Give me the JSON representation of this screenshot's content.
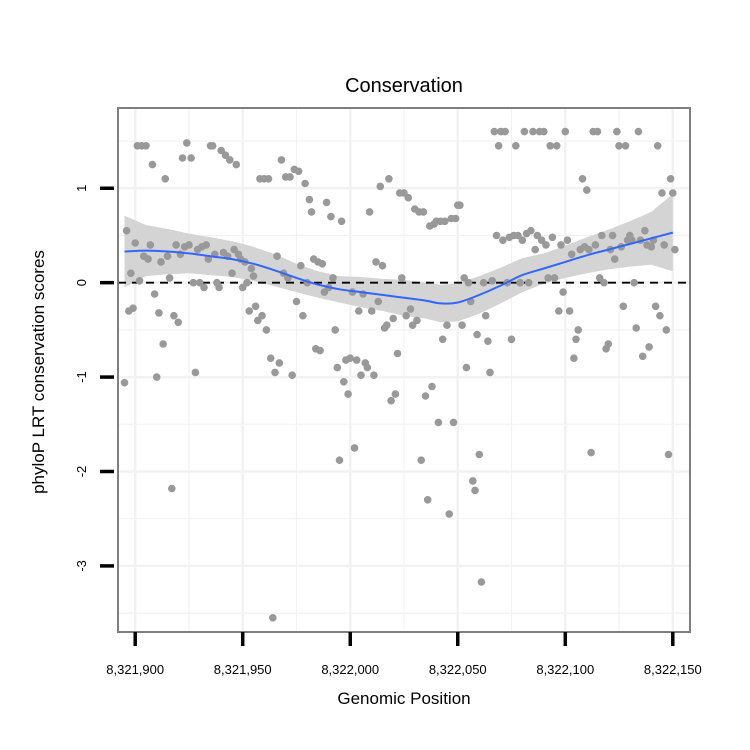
{
  "chart_data": {
    "type": "scatter",
    "title": "Conservation",
    "xlabel": "Genomic Position",
    "ylabel": "phyloP LRT conservation scores",
    "xlim": [
      8321892,
      8322158
    ],
    "ylim": [
      -3.7,
      1.85
    ],
    "xticks": [
      8321900,
      8321950,
      8322000,
      8322050,
      8322100,
      8322150
    ],
    "xtick_labels": [
      "8,321,900",
      "8,321,950",
      "8,322,000",
      "8,322,050",
      "8,322,100",
      "8,322,150"
    ],
    "yticks": [
      -3,
      -2,
      -1,
      0,
      1
    ],
    "ytick_labels": [
      "-3",
      "-2",
      "-1",
      "0",
      "1"
    ],
    "grid": true,
    "reference_line": {
      "y": 0,
      "style": "dashed",
      "color": "#000000"
    },
    "colors": {
      "points": "#999999",
      "smooth": "#3366ff",
      "ribbon": "#d4d4d4",
      "grid": "#f2f2f2",
      "panel_border": "#7f7f7f"
    },
    "points": [
      [
        8321895,
        -1.06
      ],
      [
        8321896,
        0.55
      ],
      [
        8321897,
        -0.3
      ],
      [
        8321898,
        0.1
      ],
      [
        8321899,
        -0.27
      ],
      [
        8321900,
        0.42
      ],
      [
        8321901,
        1.45
      ],
      [
        8321902,
        0.02
      ],
      [
        8321903,
        1.45
      ],
      [
        8321904,
        0.28
      ],
      [
        8321905,
        1.45
      ],
      [
        8321906,
        0.25
      ],
      [
        8321907,
        0.4
      ],
      [
        8321908,
        1.25
      ],
      [
        8321909,
        -0.12
      ],
      [
        8321910,
        -1.0
      ],
      [
        8321911,
        -0.32
      ],
      [
        8321912,
        0.22
      ],
      [
        8321913,
        -0.65
      ],
      [
        8321914,
        1.1
      ],
      [
        8321915,
        0.28
      ],
      [
        8321916,
        0.05
      ],
      [
        8321917,
        -2.18
      ],
      [
        8321918,
        -0.35
      ],
      [
        8321919,
        0.4
      ],
      [
        8321920,
        -0.42
      ],
      [
        8321921,
        0.3
      ],
      [
        8321922,
        1.32
      ],
      [
        8321923,
        0.38
      ],
      [
        8321924,
        1.48
      ],
      [
        8321925,
        0.4
      ],
      [
        8321926,
        1.32
      ],
      [
        8321927,
        0.0
      ],
      [
        8321928,
        -0.95
      ],
      [
        8321929,
        0.35
      ],
      [
        8321930,
        0.0
      ],
      [
        8321931,
        0.38
      ],
      [
        8321932,
        -0.05
      ],
      [
        8321933,
        0.4
      ],
      [
        8321934,
        0.25
      ],
      [
        8321935,
        1.45
      ],
      [
        8321936,
        1.45
      ],
      [
        8321937,
        0.3
      ],
      [
        8321938,
        0.0
      ],
      [
        8321939,
        -0.05
      ],
      [
        8321940,
        1.4
      ],
      [
        8321941,
        0.32
      ],
      [
        8321942,
        1.35
      ],
      [
        8321943,
        0.28
      ],
      [
        8321944,
        1.3
      ],
      [
        8321945,
        0.1
      ],
      [
        8321946,
        0.35
      ],
      [
        8321947,
        1.25
      ],
      [
        8321948,
        0.3
      ],
      [
        8321949,
        0.25
      ],
      [
        8321950,
        -0.05
      ],
      [
        8321951,
        0.22
      ],
      [
        8321952,
        0.0
      ],
      [
        8321953,
        -0.3
      ],
      [
        8321954,
        0.15
      ],
      [
        8321955,
        0.07
      ],
      [
        8321956,
        -0.25
      ],
      [
        8321957,
        -0.4
      ],
      [
        8321958,
        1.1
      ],
      [
        8321959,
        -0.35
      ],
      [
        8321960,
        1.1
      ],
      [
        8321961,
        -0.5
      ],
      [
        8321962,
        1.1
      ],
      [
        8321963,
        -0.8
      ],
      [
        8321964,
        -3.55
      ],
      [
        8321965,
        -0.95
      ],
      [
        8321966,
        0.28
      ],
      [
        8321967,
        -0.85
      ],
      [
        8321968,
        1.3
      ],
      [
        8321969,
        0.1
      ],
      [
        8321970,
        1.12
      ],
      [
        8321971,
        0.05
      ],
      [
        8321972,
        1.12
      ],
      [
        8321973,
        -0.98
      ],
      [
        8321974,
        1.2
      ],
      [
        8321975,
        -0.2
      ],
      [
        8321976,
        1.18
      ],
      [
        8321977,
        0.18
      ],
      [
        8321978,
        -0.35
      ],
      [
        8321979,
        1.05
      ],
      [
        8321980,
        0.0
      ],
      [
        8321981,
        0.88
      ],
      [
        8321982,
        0.75
      ],
      [
        8321983,
        0.25
      ],
      [
        8321984,
        -0.7
      ],
      [
        8321985,
        0.22
      ],
      [
        8321986,
        -0.72
      ],
      [
        8321987,
        0.2
      ],
      [
        8321988,
        -0.1
      ],
      [
        8321989,
        0.85
      ],
      [
        8321990,
        -0.05
      ],
      [
        8321991,
        0.7
      ],
      [
        8321992,
        0.05
      ],
      [
        8321993,
        -0.5
      ],
      [
        8321994,
        -0.9
      ],
      [
        8321995,
        -1.88
      ],
      [
        8321996,
        0.65
      ],
      [
        8321997,
        -1.05
      ],
      [
        8321998,
        -0.82
      ],
      [
        8321999,
        -1.18
      ],
      [
        8322000,
        -0.8
      ],
      [
        8322001,
        -0.1
      ],
      [
        8322002,
        -1.75
      ],
      [
        8322003,
        -0.82
      ],
      [
        8322004,
        -0.3
      ],
      [
        8322005,
        -0.98
      ],
      [
        8322006,
        -0.12
      ],
      [
        8322007,
        -0.85
      ],
      [
        8322008,
        -0.9
      ],
      [
        8322009,
        0.75
      ],
      [
        8322010,
        -0.3
      ],
      [
        8322011,
        -0.98
      ],
      [
        8322012,
        0.22
      ],
      [
        8322013,
        -0.2
      ],
      [
        8322014,
        1.02
      ],
      [
        8322015,
        0.18
      ],
      [
        8322016,
        -0.48
      ],
      [
        8322017,
        -0.45
      ],
      [
        8322018,
        1.1
      ],
      [
        8322019,
        -1.25
      ],
      [
        8322020,
        -0.38
      ],
      [
        8322021,
        -1.18
      ],
      [
        8322022,
        -0.75
      ],
      [
        8322023,
        0.95
      ],
      [
        8322024,
        0.05
      ],
      [
        8322025,
        0.95
      ],
      [
        8322026,
        -0.35
      ],
      [
        8322027,
        0.9
      ],
      [
        8322028,
        -0.28
      ],
      [
        8322029,
        -0.45
      ],
      [
        8322030,
        0.78
      ],
      [
        8322031,
        -0.4
      ],
      [
        8322032,
        0.75
      ],
      [
        8322033,
        -1.88
      ],
      [
        8322034,
        0.75
      ],
      [
        8322035,
        -1.2
      ],
      [
        8322036,
        -2.3
      ],
      [
        8322037,
        0.6
      ],
      [
        8322038,
        -1.1
      ],
      [
        8322039,
        0.62
      ],
      [
        8322040,
        0.65
      ],
      [
        8322041,
        -1.48
      ],
      [
        8322042,
        0.65
      ],
      [
        8322043,
        -0.6
      ],
      [
        8322044,
        0.65
      ],
      [
        8322045,
        -0.45
      ],
      [
        8322046,
        -2.45
      ],
      [
        8322047,
        0.68
      ],
      [
        8322048,
        -1.48
      ],
      [
        8322049,
        0.68
      ],
      [
        8322050,
        0.82
      ],
      [
        8322051,
        0.82
      ],
      [
        8322052,
        -0.45
      ],
      [
        8322053,
        0.05
      ],
      [
        8322054,
        -0.9
      ],
      [
        8322055,
        0.0
      ],
      [
        8322056,
        -0.2
      ],
      [
        8322057,
        -2.1
      ],
      [
        8322058,
        -2.2
      ],
      [
        8322059,
        -0.55
      ],
      [
        8322060,
        -1.82
      ],
      [
        8322061,
        -3.17
      ],
      [
        8322062,
        0.0
      ],
      [
        8322063,
        -0.35
      ],
      [
        8322064,
        -0.62
      ],
      [
        8322065,
        -0.95
      ],
      [
        8322066,
        0.02
      ],
      [
        8322067,
        1.6
      ],
      [
        8322068,
        0.5
      ],
      [
        8322069,
        1.45
      ],
      [
        8322070,
        1.6
      ],
      [
        8322071,
        0.45
      ],
      [
        8322072,
        1.6
      ],
      [
        8322073,
        0.0
      ],
      [
        8322074,
        0.48
      ],
      [
        8322075,
        -0.6
      ],
      [
        8322076,
        0.5
      ],
      [
        8322077,
        1.45
      ],
      [
        8322078,
        0.5
      ],
      [
        8322079,
        0.0
      ],
      [
        8322080,
        0.45
      ],
      [
        8322081,
        1.6
      ],
      [
        8322082,
        0.52
      ],
      [
        8322083,
        0.0
      ],
      [
        8322084,
        0.55
      ],
      [
        8322085,
        1.6
      ],
      [
        8322086,
        0.35
      ],
      [
        8322087,
        0.5
      ],
      [
        8322088,
        1.6
      ],
      [
        8322089,
        0.45
      ],
      [
        8322090,
        1.6
      ],
      [
        8322091,
        0.4
      ],
      [
        8322092,
        0.05
      ],
      [
        8322093,
        1.45
      ],
      [
        8322094,
        0.48
      ],
      [
        8322095,
        0.05
      ],
      [
        8322096,
        1.45
      ],
      [
        8322097,
        -0.3
      ],
      [
        8322098,
        0.4
      ],
      [
        8322099,
        -0.1
      ],
      [
        8322100,
        1.6
      ],
      [
        8322101,
        0.45
      ],
      [
        8322102,
        -0.3
      ],
      [
        8322103,
        0.3
      ],
      [
        8322104,
        -0.8
      ],
      [
        8322105,
        -0.6
      ],
      [
        8322106,
        -0.5
      ],
      [
        8322107,
        0.35
      ],
      [
        8322108,
        1.1
      ],
      [
        8322109,
        0.38
      ],
      [
        8322110,
        0.98
      ],
      [
        8322111,
        0.35
      ],
      [
        8322112,
        -1.8
      ],
      [
        8322113,
        1.6
      ],
      [
        8322114,
        0.4
      ],
      [
        8322115,
        1.6
      ],
      [
        8322116,
        0.05
      ],
      [
        8322117,
        0.5
      ],
      [
        8322118,
        0.0
      ],
      [
        8322119,
        -0.7
      ],
      [
        8322120,
        -0.65
      ],
      [
        8322121,
        0.35
      ],
      [
        8322122,
        0.5
      ],
      [
        8322123,
        0.25
      ],
      [
        8322124,
        1.6
      ],
      [
        8322125,
        1.45
      ],
      [
        8322126,
        0.38
      ],
      [
        8322127,
        -0.25
      ],
      [
        8322128,
        1.45
      ],
      [
        8322129,
        0.45
      ],
      [
        8322130,
        0.5
      ],
      [
        8322131,
        0.45
      ],
      [
        8322132,
        0.0
      ],
      [
        8322133,
        -0.48
      ],
      [
        8322134,
        1.6
      ],
      [
        8322135,
        0.45
      ],
      [
        8322136,
        -0.78
      ],
      [
        8322137,
        0.55
      ],
      [
        8322138,
        0.4
      ],
      [
        8322139,
        -0.68
      ],
      [
        8322140,
        0.38
      ],
      [
        8322141,
        0.45
      ],
      [
        8322142,
        -0.25
      ],
      [
        8322143,
        1.45
      ],
      [
        8322144,
        -0.35
      ],
      [
        8322145,
        0.95
      ],
      [
        8322146,
        0.4
      ],
      [
        8322147,
        -0.5
      ],
      [
        8322148,
        -1.82
      ],
      [
        8322149,
        1.1
      ],
      [
        8322150,
        0.95
      ],
      [
        8322151,
        0.35
      ]
    ],
    "smooth": {
      "x": [
        8321895,
        8321905,
        8321915,
        8321925,
        8321935,
        8321945,
        8321955,
        8321965,
        8321975,
        8321985,
        8321995,
        8322005,
        8322015,
        8322025,
        8322035,
        8322042,
        8322050,
        8322060,
        8322070,
        8322080,
        8322090,
        8322100,
        8322110,
        8322120,
        8322130,
        8322140,
        8322150
      ],
      "y": [
        0.33,
        0.34,
        0.33,
        0.31,
        0.28,
        0.25,
        0.2,
        0.13,
        0.05,
        -0.02,
        -0.07,
        -0.1,
        -0.13,
        -0.16,
        -0.19,
        -0.22,
        -0.21,
        -0.13,
        -0.03,
        0.08,
        0.15,
        0.22,
        0.29,
        0.35,
        0.41,
        0.47,
        0.53
      ],
      "lower": [
        -0.05,
        0.07,
        0.09,
        0.1,
        0.08,
        0.06,
        0.02,
        -0.04,
        -0.1,
        -0.16,
        -0.21,
        -0.26,
        -0.3,
        -0.35,
        -0.38,
        -0.42,
        -0.41,
        -0.33,
        -0.22,
        -0.1,
        -0.01,
        0.05,
        0.1,
        0.14,
        0.17,
        0.19,
        0.12
      ],
      "upper": [
        0.71,
        0.61,
        0.57,
        0.52,
        0.48,
        0.44,
        0.38,
        0.3,
        0.2,
        0.12,
        0.07,
        0.06,
        0.04,
        0.03,
        0.0,
        -0.02,
        -0.01,
        0.07,
        0.16,
        0.26,
        0.31,
        0.39,
        0.48,
        0.56,
        0.65,
        0.75,
        0.94
      ]
    }
  }
}
